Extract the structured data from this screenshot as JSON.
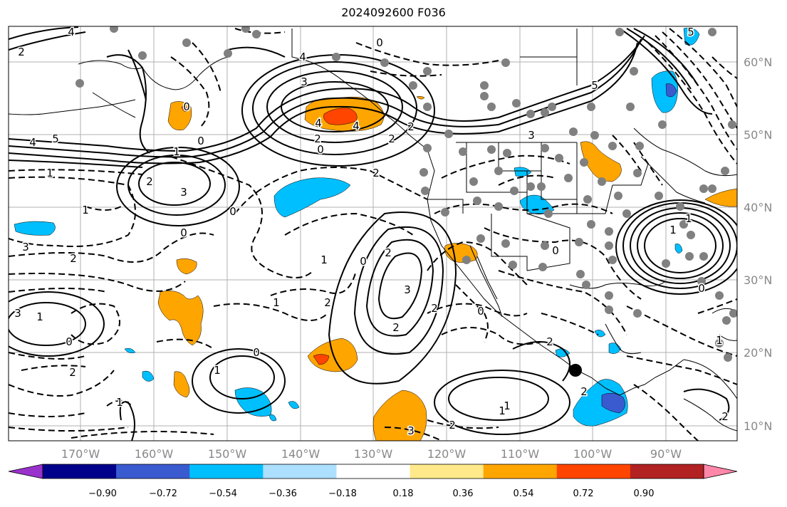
{
  "title": "2024092600 F036",
  "axes": {
    "lon_labels": [
      "170°W",
      "160°W",
      "150°W",
      "140°W",
      "130°W",
      "120°W",
      "110°W",
      "100°W",
      "90°W"
    ],
    "lat_labels": [
      "60°N",
      "50°N",
      "40°N",
      "30°N",
      "20°N",
      "10°N"
    ]
  },
  "colorbar": {
    "colors": [
      "#9932CC",
      "#00008B",
      "#3A5BD0",
      "#00BFFF",
      "#ADDFFF",
      "#FFFFFF",
      "#FFE98A",
      "#FFA500",
      "#FF4500",
      "#B22222",
      "#FF88AA"
    ],
    "tick_labels": [
      "−0.90",
      "−0.72",
      "−0.54",
      "−0.36",
      "−0.18",
      "0.18",
      "0.36",
      "0.54",
      "0.72",
      "0.90"
    ]
  },
  "contour_labels": [
    "4",
    "2",
    "5",
    "4",
    "4",
    "5",
    "3",
    "4",
    "2",
    "4",
    "2",
    "2",
    "0",
    "1",
    "0",
    "3",
    "2",
    "1",
    "2",
    "0",
    "0",
    "3",
    "5",
    "1",
    "3",
    "2",
    "0",
    "0",
    "1",
    "2",
    "3",
    "2",
    "0",
    "2",
    "1",
    "2",
    "1",
    "0",
    "2",
    "0",
    "1",
    "3",
    "3",
    "2",
    "0",
    "1",
    "2",
    "2",
    "0",
    "1",
    "1",
    "0",
    "1",
    "2",
    "1",
    "1"
  ],
  "colors": {
    "land_outline": "#000000",
    "grid": "#b0b0b0",
    "station_dot": "#808080",
    "marker": "#000000"
  }
}
